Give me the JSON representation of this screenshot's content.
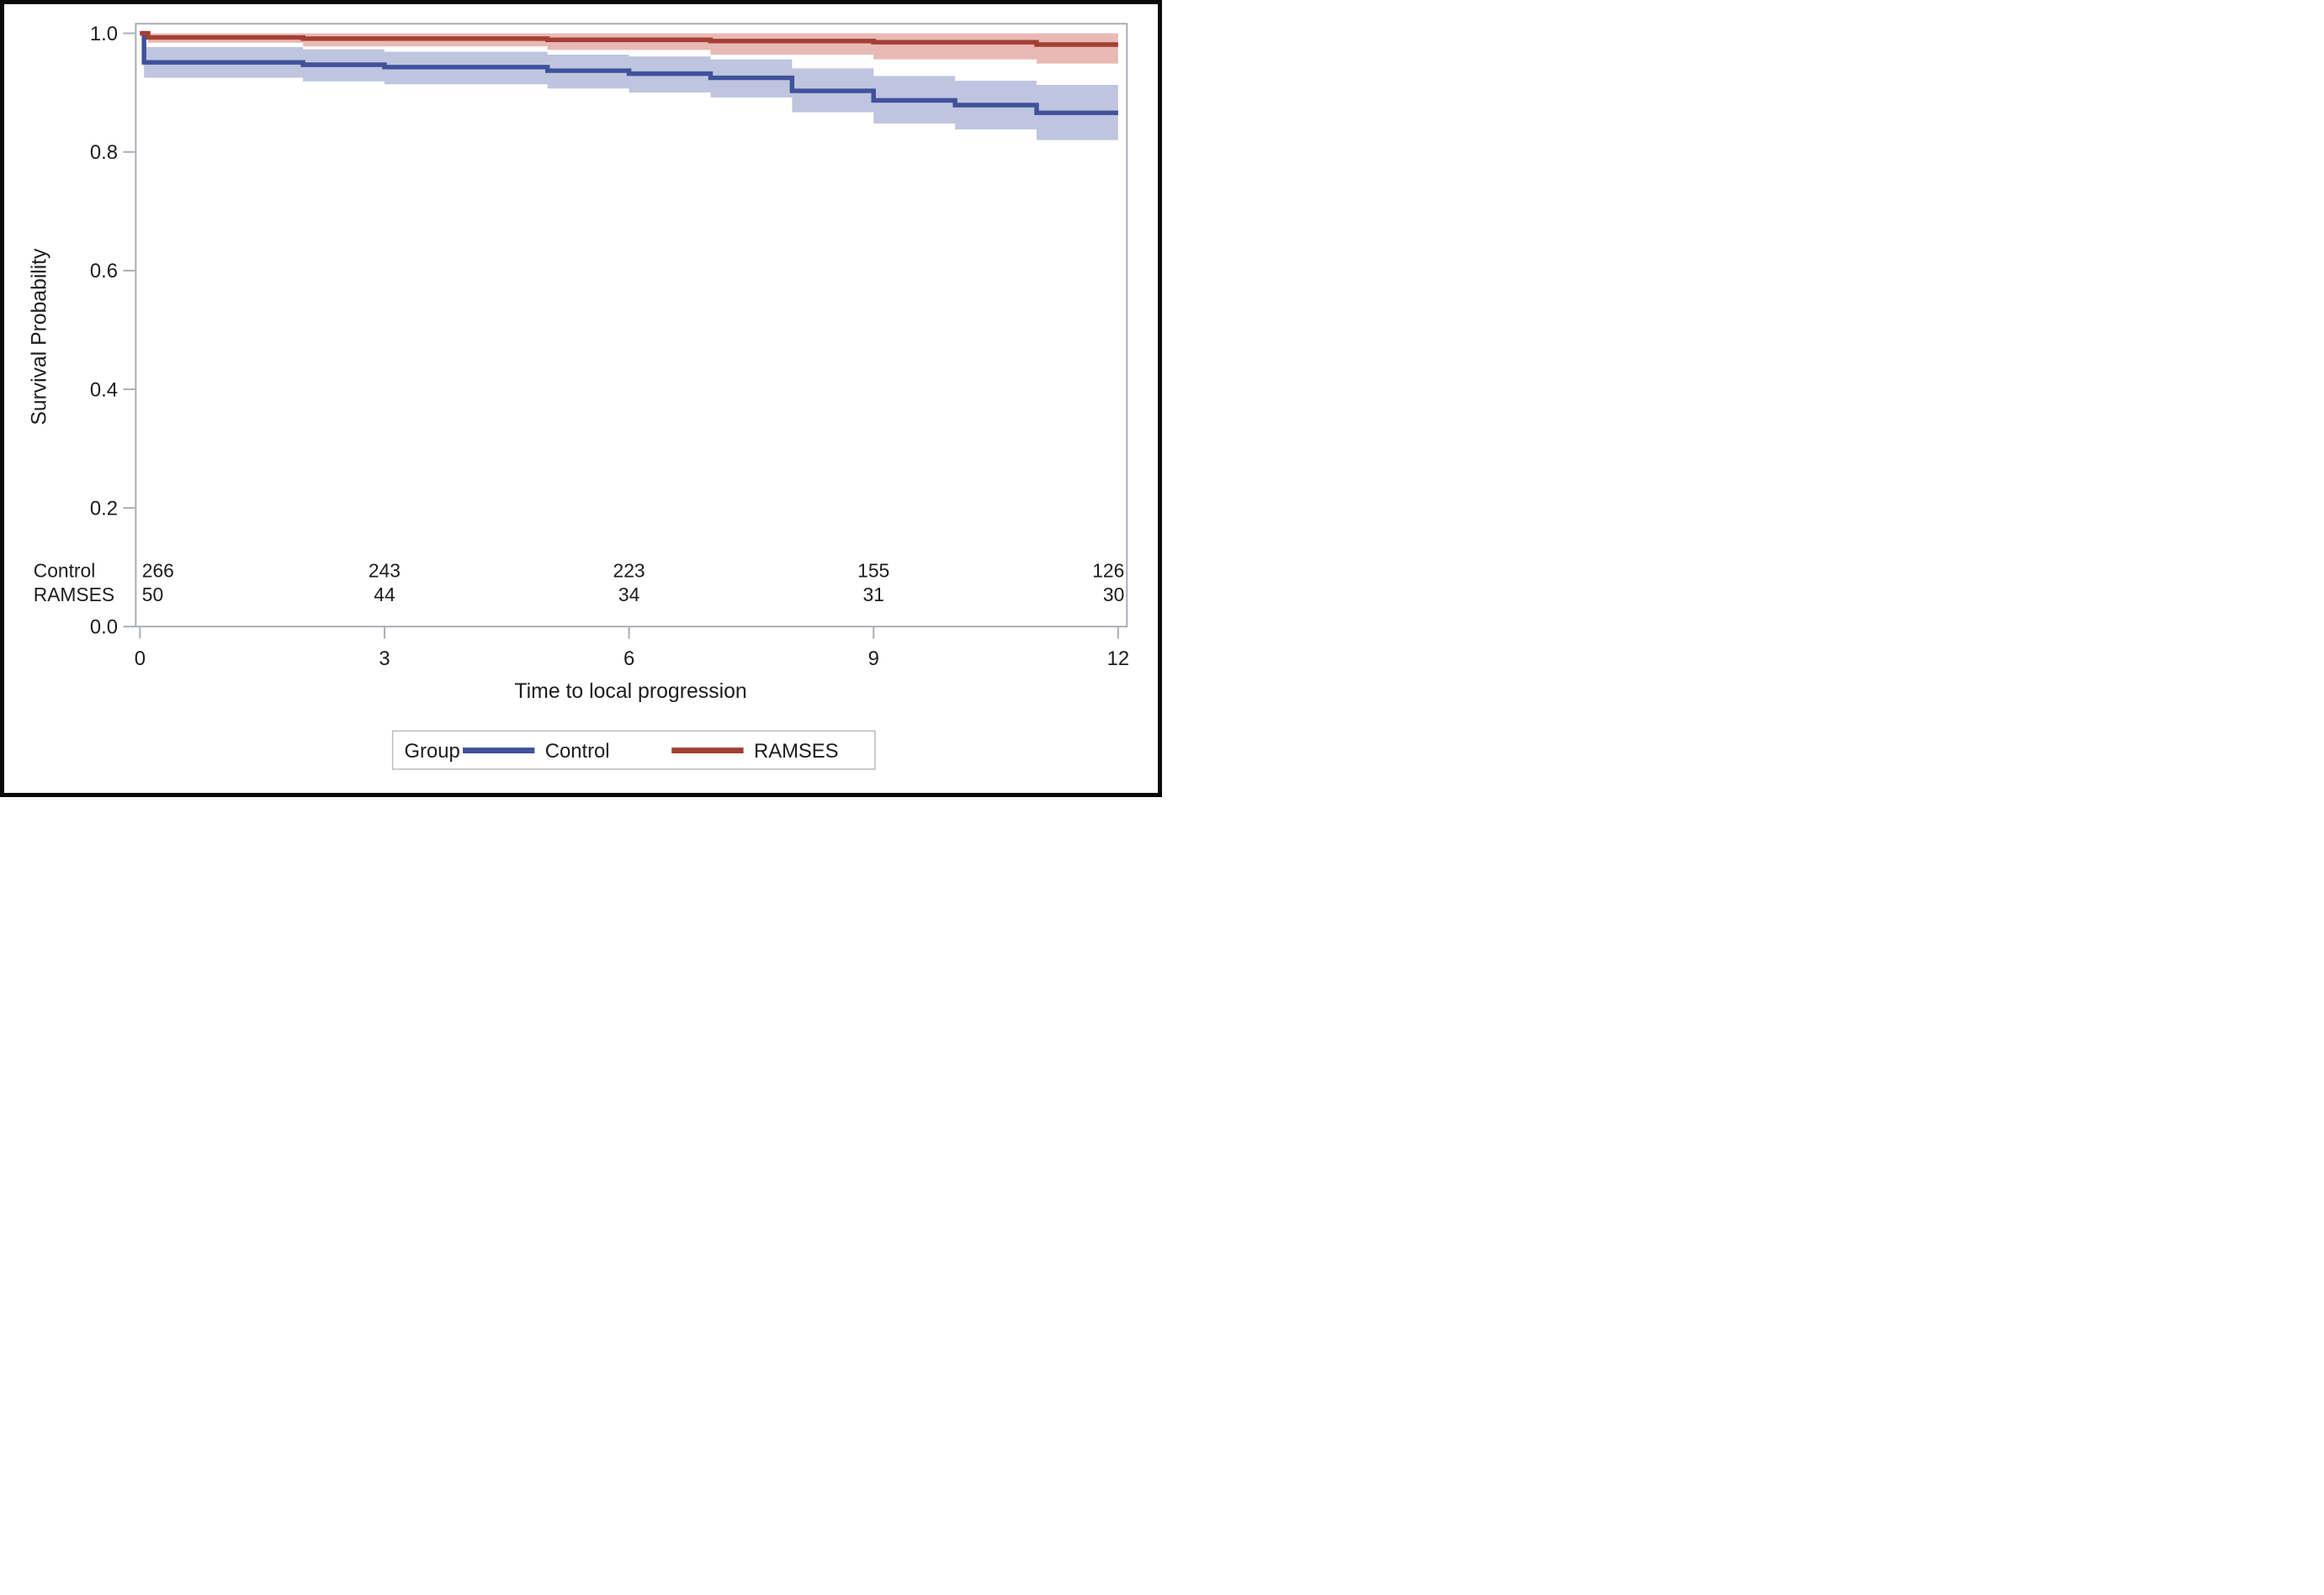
{
  "figure": {
    "background": "#ffffff",
    "outer_border_color": "#0a0a0a",
    "frame_color": "#a8aeb4"
  },
  "chart_data": {
    "type": "line",
    "subtype": "kaplan-meier-step-with-ci-bands",
    "title": "",
    "xlabel": "Time to local progression",
    "ylabel": "Survival Probability",
    "xlim": [
      0,
      12
    ],
    "ylim": [
      0.0,
      1.0
    ],
    "xticks": [
      0,
      3,
      6,
      9,
      12
    ],
    "yticks": [
      0.0,
      0.2,
      0.4,
      0.6,
      0.8,
      1.0
    ],
    "grid": false,
    "legend": {
      "title": "Group",
      "position": "bottom-center",
      "entries": [
        "Control",
        "RAMSES"
      ]
    },
    "series": [
      {
        "name": "Control",
        "color": "#40519c",
        "band_color": "#bfc5de",
        "steps": [
          [
            0,
            1.0
          ],
          [
            0.05,
            0.951
          ],
          [
            2,
            0.947
          ],
          [
            3,
            0.943
          ],
          [
            5,
            0.937
          ],
          [
            6,
            0.932
          ],
          [
            7,
            0.925
          ],
          [
            8,
            0.903
          ],
          [
            9,
            0.887
          ],
          [
            10,
            0.879
          ],
          [
            11,
            0.866
          ]
        ],
        "ci_band": [
          [
            0.05,
            0.925,
            0.977
          ],
          [
            2,
            0.919,
            0.973
          ],
          [
            3,
            0.914,
            0.969
          ],
          [
            5,
            0.907,
            0.964
          ],
          [
            6,
            0.9,
            0.961
          ],
          [
            7,
            0.892,
            0.956
          ],
          [
            8,
            0.867,
            0.941
          ],
          [
            9,
            0.848,
            0.928
          ],
          [
            10,
            0.838,
            0.92
          ],
          [
            11,
            0.82,
            0.913
          ]
        ]
      },
      {
        "name": "RAMSES",
        "color": "#a33f33",
        "band_color": "#e9b9b5",
        "steps": [
          [
            0,
            1.0
          ],
          [
            0.1,
            0.993
          ],
          [
            2,
            0.991
          ],
          [
            5,
            0.989
          ],
          [
            7,
            0.987
          ],
          [
            9,
            0.985
          ],
          [
            11,
            0.981
          ]
        ],
        "ci_band": [
          [
            0.1,
            0.984,
            1.0
          ],
          [
            2,
            0.978,
            1.0
          ],
          [
            5,
            0.972,
            1.0
          ],
          [
            7,
            0.964,
            1.0
          ],
          [
            9,
            0.956,
            1.0
          ],
          [
            11,
            0.949,
            1.0
          ]
        ]
      }
    ],
    "at_risk": {
      "times": [
        0,
        3,
        6,
        9,
        12
      ],
      "rows": [
        {
          "label": "Control",
          "values": [
            "266",
            "243",
            "223",
            "155",
            "126"
          ]
        },
        {
          "label": "RAMSES",
          "values": [
            "50",
            "44",
            "34",
            "31",
            "30"
          ]
        }
      ]
    }
  }
}
